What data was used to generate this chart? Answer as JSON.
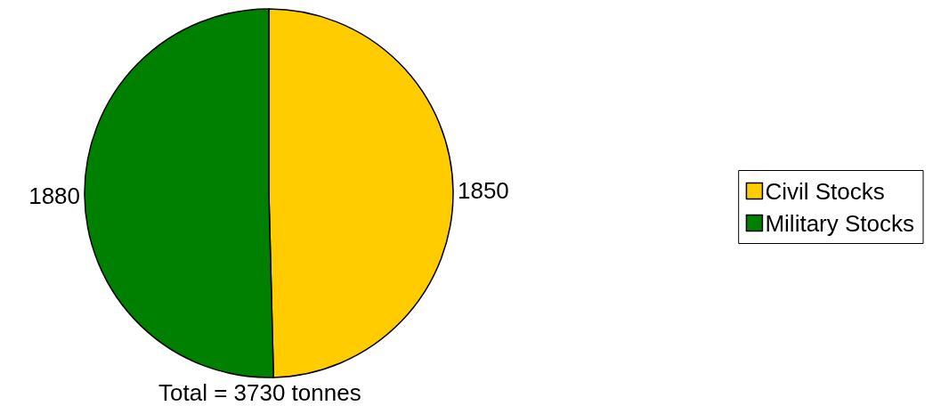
{
  "chart_data": {
    "type": "pie",
    "categories": [
      "Civil Stocks",
      "Military Stocks"
    ],
    "values": [
      1850,
      1880
    ],
    "colors": [
      "#ffcc00",
      "#008000"
    ],
    "data_labels": true,
    "legend": "right",
    "annotations": [
      "Total = 3730 tonnes"
    ]
  }
}
